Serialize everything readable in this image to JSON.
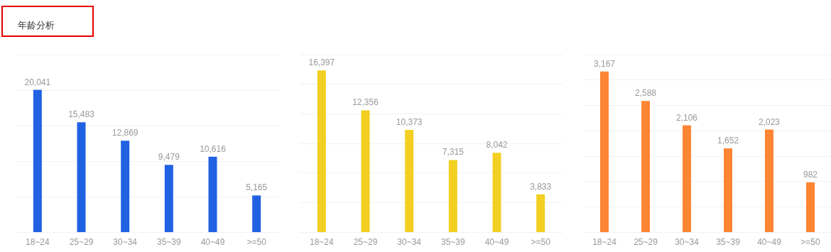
{
  "chart_data": [
    {
      "type": "bar",
      "title": "年龄分析",
      "categories": [
        "18~24",
        "25~29",
        "30~34",
        "35~39",
        "40~49",
        ">=50"
      ],
      "values": [
        20041,
        15483,
        12869,
        9479,
        10616,
        5165
      ],
      "value_labels": [
        "20,041",
        "15,483",
        "12,869",
        "9,479",
        "10,616",
        "5,165"
      ],
      "color": "#2162e3",
      "grid": "y",
      "tick_labels": "x"
    },
    {
      "type": "bar",
      "categories": [
        "18~24",
        "25~29",
        "30~34",
        "35~39",
        "40~49",
        ">=50"
      ],
      "values": [
        16397,
        12356,
        10373,
        7315,
        8042,
        3833
      ],
      "value_labels": [
        "16,397",
        "12,356",
        "10,373",
        "7,315",
        "8,042",
        "3,833"
      ],
      "color": "#f2cf22",
      "grid": "y",
      "tick_labels": "x"
    },
    {
      "type": "bar",
      "categories": [
        "18~24",
        "25~29",
        "30~34",
        "35~39",
        "40~49",
        ">=50"
      ],
      "values": [
        3167,
        2588,
        2106,
        1652,
        2023,
        982
      ],
      "value_labels": [
        "3,167",
        "2,588",
        "2,106",
        "1,652",
        "2,023",
        "982"
      ],
      "color": "#fe8533",
      "grid": "y",
      "tick_labels": "x"
    }
  ]
}
